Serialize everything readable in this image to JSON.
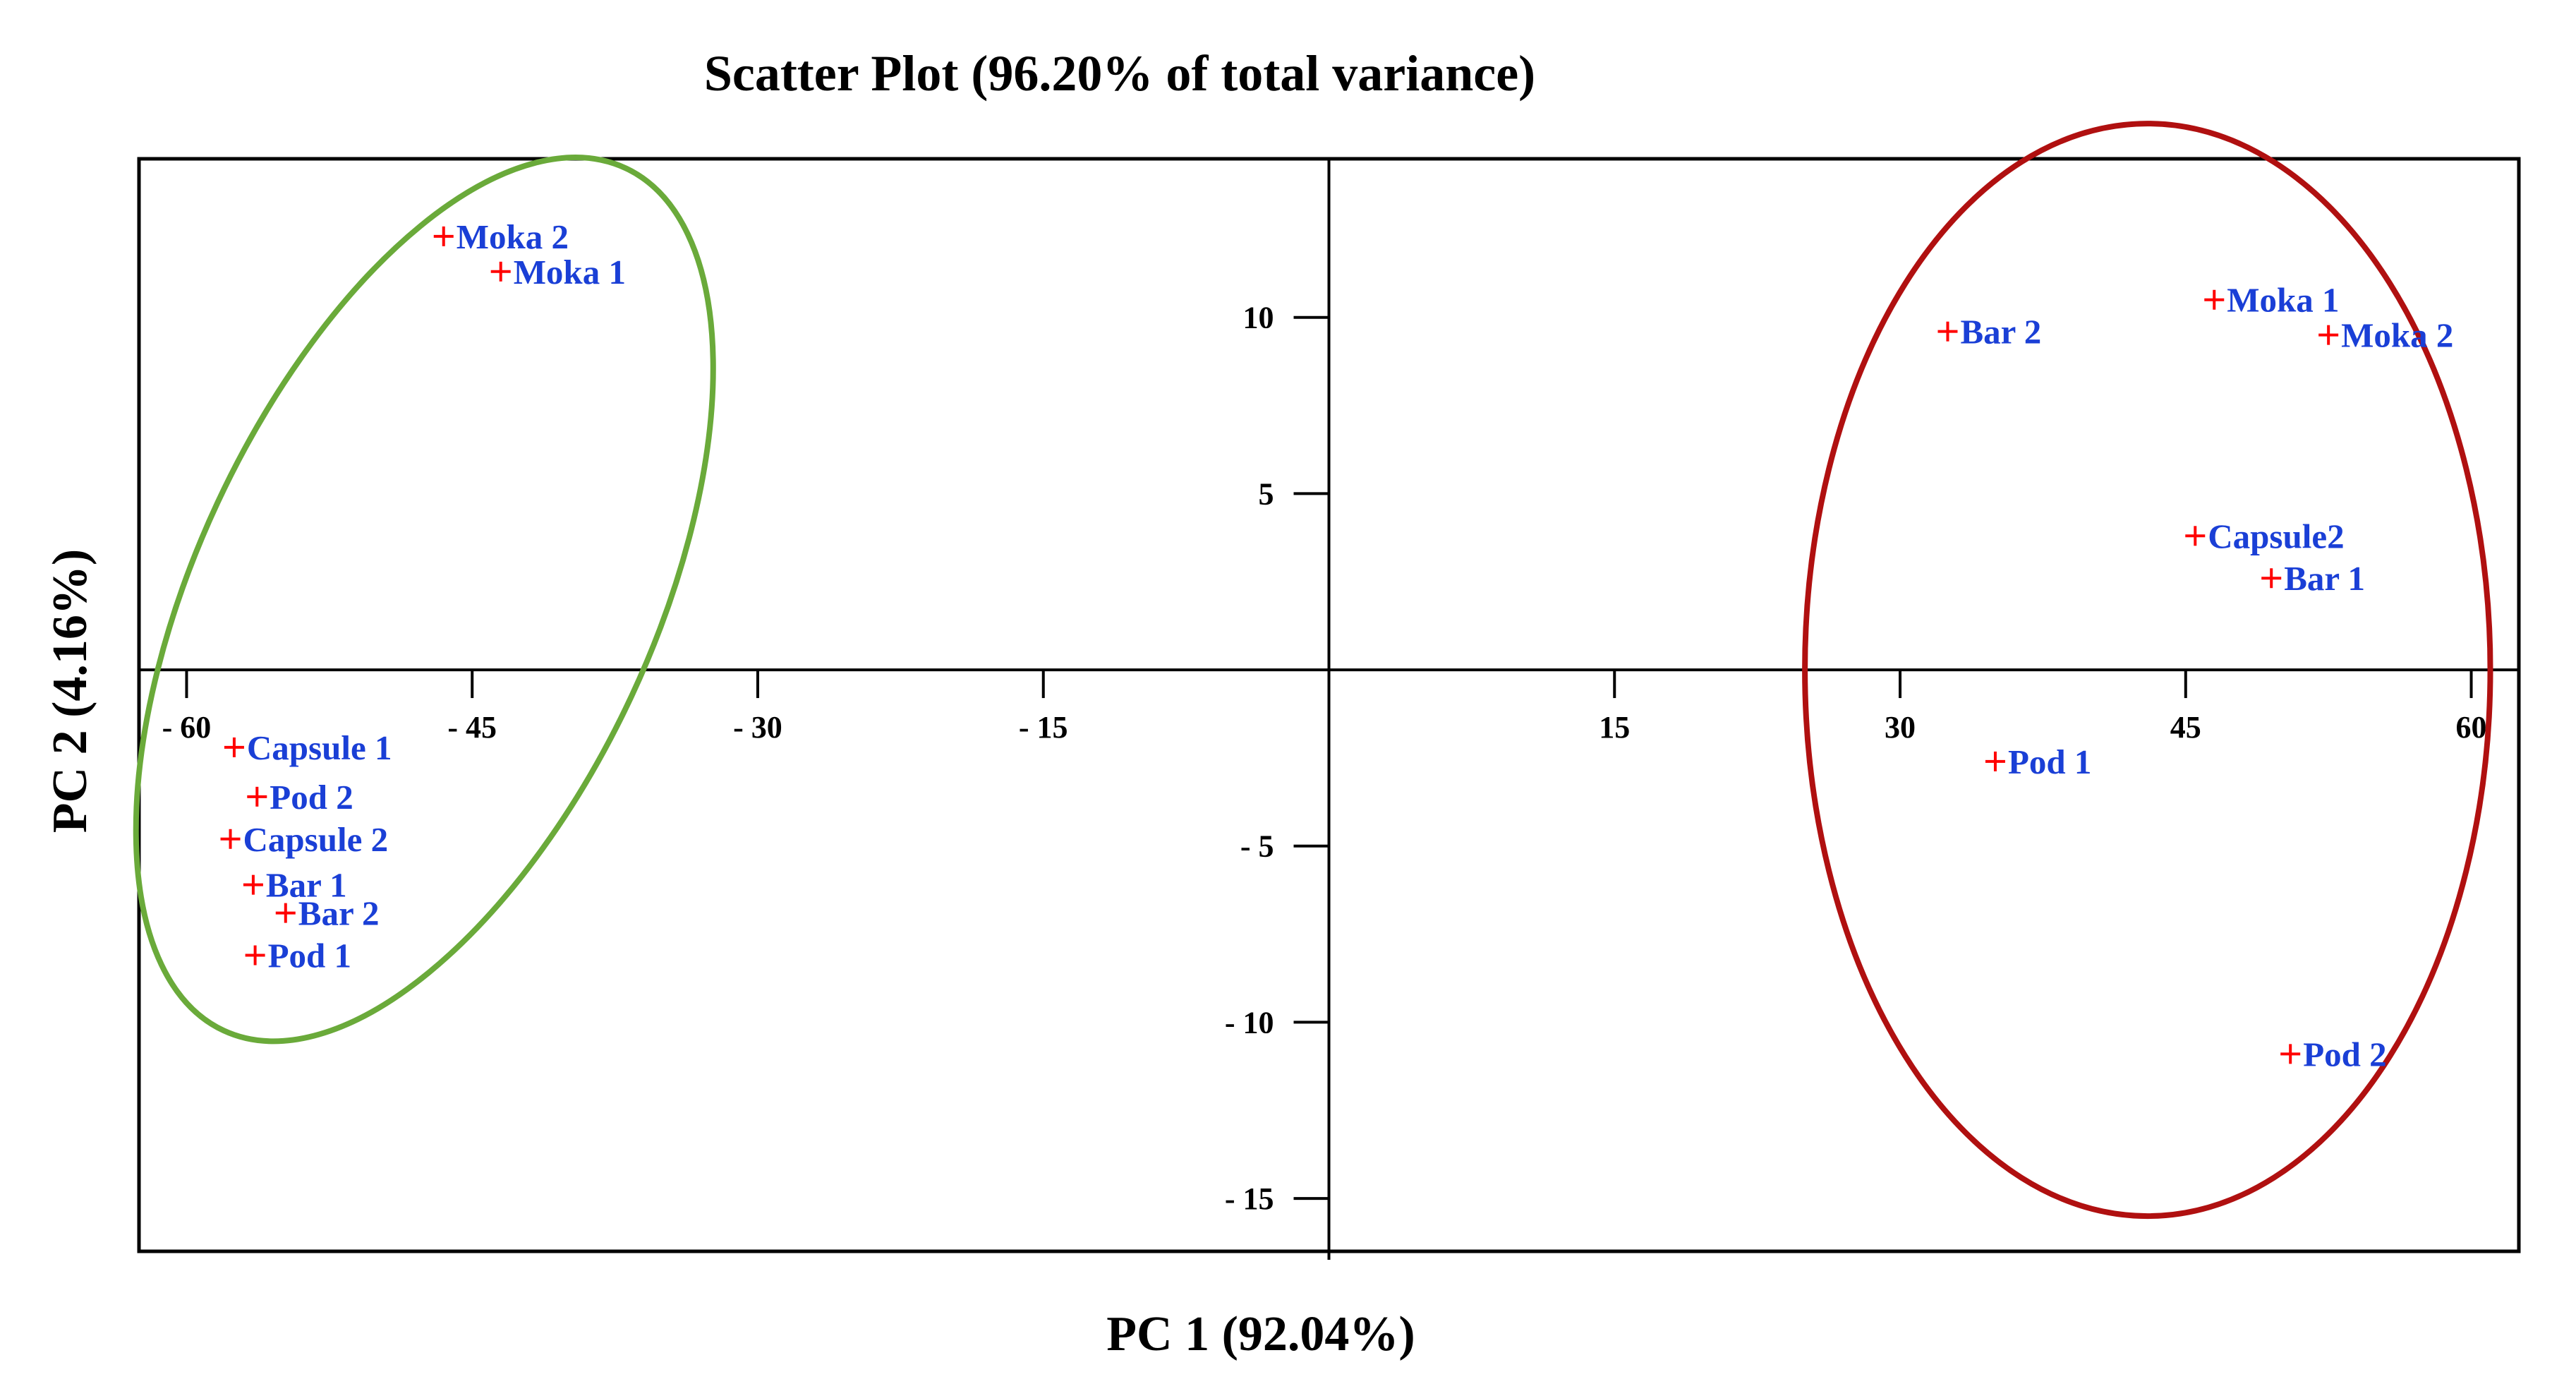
{
  "chart_data": {
    "type": "scatter",
    "title": "Scatter Plot (96.20% of total variance)",
    "xlabel": "PC 1 (92.04%)",
    "ylabel": "PC 2 (4.16%)",
    "xlim": [
      -62.5,
      62.5
    ],
    "ylim": [
      -16.5,
      14.5
    ],
    "xticks": [
      {
        "value": -60,
        "label": "- 60"
      },
      {
        "value": -45,
        "label": "- 45"
      },
      {
        "value": -30,
        "label": "- 30"
      },
      {
        "value": -15,
        "label": "- 15"
      },
      {
        "value": 15,
        "label": "15"
      },
      {
        "value": 30,
        "label": "30"
      },
      {
        "value": 45,
        "label": "45"
      },
      {
        "value": 60,
        "label": "60"
      }
    ],
    "yticks": [
      {
        "value": 10,
        "label": "10"
      },
      {
        "value": 5,
        "label": "5"
      },
      {
        "value": -5,
        "label": "- 5"
      },
      {
        "value": -10,
        "label": "- 10"
      },
      {
        "value": -15,
        "label": "- 15"
      }
    ],
    "grid": false,
    "legend": "none",
    "marker_color": "#ff0000",
    "label_color": "#1a3fd6",
    "points": [
      {
        "label": "Moka 2",
        "x": -46.5,
        "y": 12.3
      },
      {
        "label": "Moka 1",
        "x": -43.5,
        "y": 11.3
      },
      {
        "label": "Capsule 1",
        "x": -57.5,
        "y": -2.2
      },
      {
        "label": "Pod 2",
        "x": -56.3,
        "y": -3.6
      },
      {
        "label": "Capsule 2",
        "x": -57.7,
        "y": -4.8
      },
      {
        "label": "Bar 1",
        "x": -56.5,
        "y": -6.1
      },
      {
        "label": "Bar 2",
        "x": -54.8,
        "y": -6.9
      },
      {
        "label": "Pod 1",
        "x": -56.4,
        "y": -8.1
      },
      {
        "label": "Bar 2",
        "x": 32.5,
        "y": 9.6
      },
      {
        "label": "Moka 1",
        "x": 46.5,
        "y": 10.5
      },
      {
        "label": "Moka 2",
        "x": 52.5,
        "y": 9.5
      },
      {
        "label": "Capsule2",
        "x": 45.5,
        "y": 3.8
      },
      {
        "label": "Bar 1",
        "x": 49.5,
        "y": 2.6
      },
      {
        "label": "Pod 1",
        "x": 35.0,
        "y": -2.6
      },
      {
        "label": "Pod 2",
        "x": 50.5,
        "y": -10.9
      }
    ],
    "groups": [
      {
        "color": "#6aaa3a",
        "points": [
          "Moka 2",
          "Moka 1",
          "Capsule 1",
          "Pod 2",
          "Capsule 2",
          "Bar 1",
          "Bar 2",
          "Pod 1"
        ],
        "cx": -47.5,
        "cy": 2.0,
        "rx": 12.0,
        "ry": 13.5,
        "rotation": 25
      },
      {
        "color": "#b01010",
        "points": [
          "Bar 2",
          "Moka 1",
          "Moka 2",
          "Capsule2",
          "Bar 1",
          "Pod 1",
          "Pod 2"
        ],
        "cx": 43.0,
        "cy": 0.0,
        "rx": 18.0,
        "ry": 15.5,
        "rotation": 0
      }
    ]
  }
}
